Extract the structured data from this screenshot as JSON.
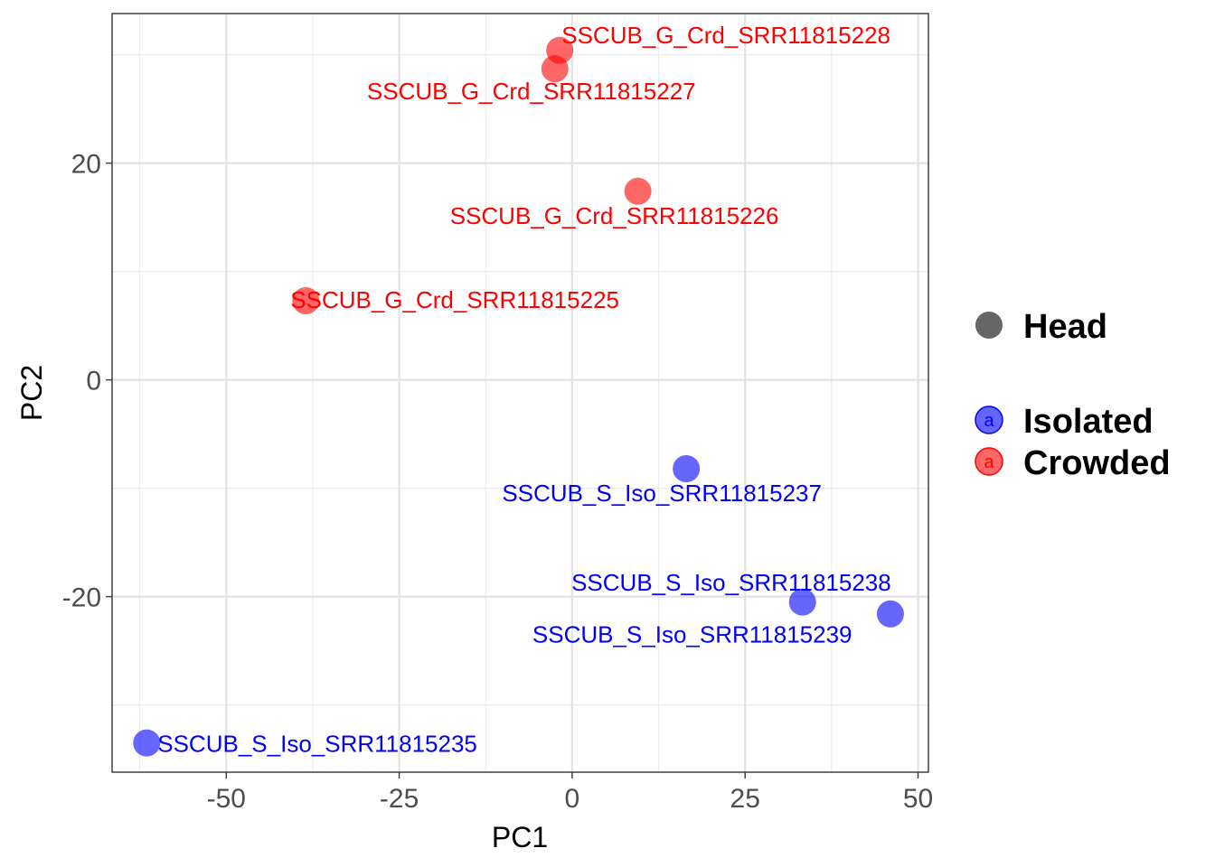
{
  "chart_data": {
    "type": "scatter",
    "xlabel": "PC1",
    "ylabel": "PC2",
    "xlim": [
      -66.5,
      51.5
    ],
    "ylim": [
      -36.2,
      33.8
    ],
    "x_ticks": [
      -50,
      -25,
      0,
      25,
      50
    ],
    "x_tick_labels": [
      "-50",
      "-25",
      "0",
      "25",
      "50"
    ],
    "y_ticks": [
      -20,
      0,
      20
    ],
    "y_tick_labels": [
      "-20",
      "0",
      "20"
    ],
    "grid": true,
    "legend_position": "right",
    "legend": {
      "shape_entries": [
        {
          "label": "Head",
          "color": "#666666"
        }
      ],
      "color_entries": [
        {
          "label": "Isolated",
          "color": "#0000ff",
          "key_letter": "a"
        },
        {
          "label": "Crowded",
          "color": "#ff0000",
          "key_letter": "a"
        }
      ]
    },
    "series": [
      {
        "name": "Isolated",
        "color": "#0000ff",
        "points": [
          {
            "label": "SSCUB_S_Iso_SRR11815235",
            "x": -61.5,
            "y": -33.5
          },
          {
            "label": "SSCUB_S_Iso_SRR11815237",
            "x": 16.5,
            "y": -8.2
          },
          {
            "label": "SSCUB_S_Iso_SRR11815238",
            "x": 46.0,
            "y": -21.6
          },
          {
            "label": "SSCUB_S_Iso_SRR11815239",
            "x": 33.3,
            "y": -20.5
          }
        ]
      },
      {
        "name": "Crowded",
        "color": "#ff0000",
        "points": [
          {
            "label": "SSCUB_G_Crd_SRR11815225",
            "x": -38.5,
            "y": 7.3
          },
          {
            "label": "SSCUB_G_Crd_SRR11815226",
            "x": 9.5,
            "y": 17.4
          },
          {
            "label": "SSCUB_G_Crd_SRR11815227",
            "x": -2.5,
            "y": 28.7
          },
          {
            "label": "SSCUB_G_Crd_SRR11815228",
            "x": -1.8,
            "y": 30.4
          }
        ]
      }
    ]
  }
}
